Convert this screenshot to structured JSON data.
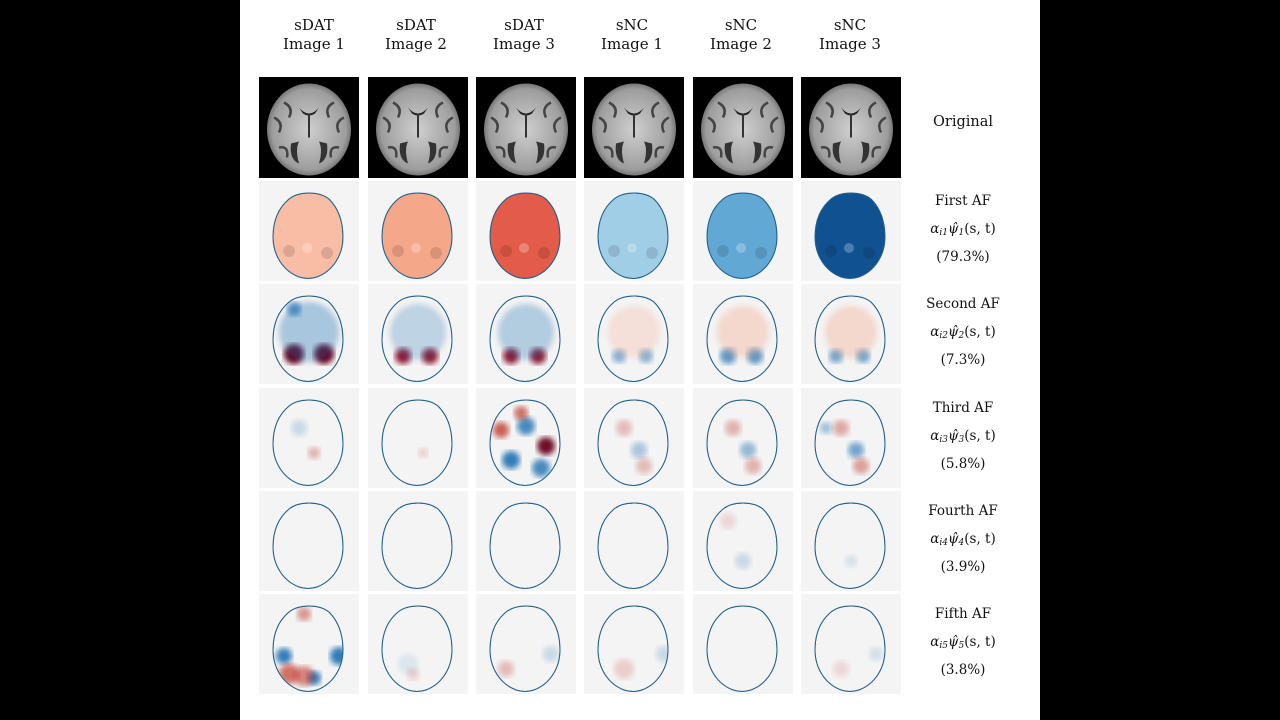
{
  "figure": {
    "columns": [
      {
        "group": "sDAT",
        "image": "Image 1"
      },
      {
        "group": "sDAT",
        "image": "Image 2"
      },
      {
        "group": "sDAT",
        "image": "Image 3"
      },
      {
        "group": "sNC",
        "image": "Image 1"
      },
      {
        "group": "sNC",
        "image": "Image 2"
      },
      {
        "group": "sNC",
        "image": "Image 3"
      }
    ],
    "original_label": "Original",
    "rows": [
      {
        "name": "First AF",
        "alpha": "α",
        "alpha_sub": "i1",
        "psi": "ψ̂",
        "psi_sub": "1",
        "args": "(s, t)",
        "variance": "(79.3%)"
      },
      {
        "name": "Second AF",
        "alpha": "α",
        "alpha_sub": "i2",
        "psi": "ψ̂",
        "psi_sub": "2",
        "args": "(s, t)",
        "variance": "(7.3%)"
      },
      {
        "name": "Third AF",
        "alpha": "α",
        "alpha_sub": "i3",
        "psi": "ψ̂",
        "psi_sub": "3",
        "args": "(s, t)",
        "variance": "(5.8%)"
      },
      {
        "name": "Fourth AF",
        "alpha": "α",
        "alpha_sub": "i4",
        "psi": "ψ̂",
        "psi_sub": "4",
        "args": "(s, t)",
        "variance": "(3.9%)"
      },
      {
        "name": "Fifth AF",
        "alpha": "α",
        "alpha_sub": "i5",
        "psi": "ψ̂",
        "psi_sub": "5",
        "args": "(s, t)",
        "variance": "(3.8%)"
      }
    ],
    "colors": {
      "positive": "#b2182b",
      "negative": "#2166ac",
      "neutral": "#f4f4f4",
      "outline": "#1f5f8b"
    }
  }
}
